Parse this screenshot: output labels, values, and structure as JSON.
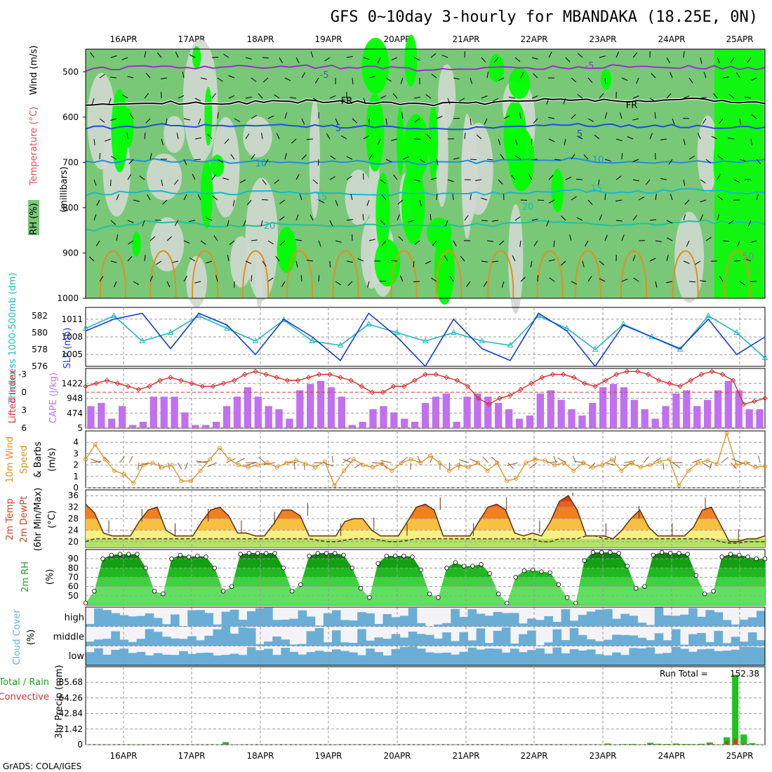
{
  "title": "GFS 0~10day 3-hourly for MBANDAKA (18.25E, 0N)",
  "footer": "GrADS: COLA/IGES",
  "colors": {
    "grid": "#9a9a9a",
    "rh_light": "#d0d8d0",
    "rh_mid": "#78c878",
    "rh_bright": "#00ff00",
    "temp_minus5": "#9b30c8",
    "temp_freeze": "#000000",
    "temp_5": "#2050d0",
    "temp_10": "#1e90d8",
    "temp_15": "#18b8c8",
    "temp_20": "#20c0a0",
    "temp_25": "#e09020",
    "slp": "#1a3ccf",
    "thickness": "#20b8c0",
    "lifted_index": "#d83030",
    "cape": "#c070f0",
    "wind": "#e09020",
    "barb": "#8b5a2b",
    "temp_dark": "#d84018",
    "temp_mid": "#f08020",
    "temp_light": "#f8c040",
    "temp_pale": "#f8f080",
    "dewpt": "#604020",
    "rh_dark": "#108010",
    "rh_green": "#30c030",
    "rh_lime": "#60e060",
    "cloud": "#6aaed6",
    "cloud_bg": "#f4f4f8",
    "precip_total": "#20c020",
    "precip_conv": "#e03030"
  },
  "date_labels": [
    "16APR",
    "17APR",
    "18APR",
    "19APR",
    "20APR",
    "21APR",
    "22APR",
    "23APR",
    "24APR",
    "25APR"
  ],
  "panels": {
    "upper": {
      "ylabel_rh": "RH (%)",
      "ylabel_temp": "Temperature (°C)",
      "ylabel_wind": "Wind (m/s)",
      "ylabel_units": "(millibars)",
      "contour_labels": [
        "-5",
        "-5",
        "FR",
        "FR",
        "5",
        "5",
        "10",
        "10",
        "15",
        "15",
        "20",
        "20",
        "50"
      ]
    },
    "slp": {
      "ylabel_thick": "Thickness 1000-500mb (dm)",
      "ylabel_slp": "SLP (mb)"
    },
    "cape": {
      "ylabel_li": "Lifted Index",
      "ylabel_cape": "CAPE (J/kg)"
    },
    "wind": {
      "ylabel_1": "10m Wind",
      "ylabel_2": "Speed",
      "ylabel_3": "& Barbs",
      "ylabel_4": "(m/s)"
    },
    "temp": {
      "ylabel_1": "2m Temp",
      "ylabel_2": "2m DewPt",
      "ylabel_3": "(6hr Min/Max)",
      "ylabel_4": "(°C)"
    },
    "rh": {
      "ylabel_1": "2m RH",
      "ylabel_2": "(%)"
    },
    "cloud": {
      "ylabel_1": "Cloud Cover",
      "ylabel_2": "(%)",
      "rows": [
        "high",
        "middle",
        "low"
      ]
    },
    "precip": {
      "ylabel_1": "Total / Rain",
      "ylabel_2": "Convective",
      "ylabel_3": "3hr Precip (mm)",
      "run_total_label": "Run Total =",
      "run_total_value": "152.38"
    }
  },
  "chart_data": [
    {
      "type": "heatmap",
      "panel": "upper-air",
      "ylim": [
        1000,
        450
      ],
      "y_ticks": [
        "500",
        "600",
        "700",
        "800",
        "900",
        "1000"
      ],
      "x": [
        "16APR",
        "17APR",
        "18APR",
        "19APR",
        "20APR",
        "21APR",
        "22APR",
        "23APR",
        "24APR",
        "25APR"
      ],
      "isotherm_levels_mb": {
        "-5": [
          495,
          490,
          490,
          488,
          490,
          495,
          492,
          490,
          488,
          490,
          492
        ],
        "FR": [
          570,
          568,
          570,
          565,
          568,
          572,
          568,
          560,
          565,
          562,
          570
        ],
        "5": [
          625,
          618,
          620,
          620,
          622,
          625,
          622,
          615,
          620,
          620,
          625
        ],
        "10": [
          700,
          695,
          698,
          700,
          700,
          702,
          698,
          692,
          700,
          700,
          695
        ],
        "15": [
          770,
          765,
          768,
          765,
          770,
          770,
          768,
          762,
          765,
          760,
          768
        ],
        "20": [
          850,
          830,
          840,
          835,
          840,
          840,
          838,
          830,
          840,
          830,
          835
        ]
      }
    },
    {
      "type": "line",
      "panel": "slp-thickness",
      "series": [
        {
          "name": "SLP (mb)",
          "axis": "right",
          "values": [
            1009,
            1011,
            1012,
            1006,
            1012,
            1010,
            1005,
            1011,
            1008,
            1004,
            1012,
            1008,
            1003,
            1011,
            1006,
            1004,
            1012,
            1009,
            1003,
            1010,
            1008,
            1006,
            1011,
            1005,
            1008
          ]
        },
        {
          "name": "Thickness (dm)",
          "axis": "left",
          "values": [
            580.5,
            582,
            579,
            580,
            582,
            580.5,
            579,
            581.5,
            579,
            578.5,
            581,
            580,
            579,
            580,
            579,
            578.5,
            582,
            580.5,
            578,
            581,
            579.5,
            578,
            582,
            580,
            577
          ]
        }
      ],
      "ylim_slp": [
        1003,
        1013
      ],
      "ylim_thickness": [
        576,
        583
      ],
      "yticks_slp": [
        "1011",
        "1008",
        "1005"
      ],
      "yticks_thickness": [
        "582",
        "580",
        "578",
        "576"
      ]
    },
    {
      "type": "bar",
      "panel": "cape-li",
      "cape_values": [
        700,
        800,
        300,
        700,
        100,
        200,
        1000,
        1000,
        1000,
        500,
        100,
        100,
        200,
        700,
        1000,
        1300,
        1000,
        700,
        600,
        300,
        1200,
        1400,
        1500,
        1300,
        1000,
        100,
        200,
        600,
        700,
        500,
        300,
        200,
        800,
        1000,
        1100,
        200,
        1000,
        1100,
        1000,
        800,
        600,
        300,
        400,
        1100,
        1200,
        900,
        600,
        400,
        800,
        1300,
        1400,
        1300,
        900,
        600,
        300,
        700,
        1100,
        1200,
        700,
        900,
        1200,
        1500,
        1200,
        600,
        600
      ],
      "li_values": [
        -1,
        -1.5,
        -2,
        -1.5,
        -1,
        -0.5,
        -1,
        -2,
        -2.5,
        -2,
        -1.5,
        -1,
        -1,
        -1.5,
        -2,
        -3,
        -3.5,
        -3,
        -2.5,
        -2,
        -2,
        -2.5,
        -3,
        -3,
        -2.5,
        -2,
        -1,
        0,
        0,
        -1,
        -1,
        -2,
        -3,
        -3,
        -2.5,
        -2,
        -1,
        1,
        2,
        1,
        0.5,
        -0.5,
        -1.5,
        -2.5,
        -3,
        -3,
        -2.5,
        -1.5,
        -1,
        -2,
        -3,
        -3.5,
        -3.5,
        -3,
        -2,
        -1.5,
        -1,
        -2,
        -3,
        -3.5,
        -3,
        -2,
        2,
        1.5,
        1
      ],
      "ylim_cape": [
        0,
        1896
      ],
      "yticks_cape": [
        "1422",
        "948",
        "474",
        "5"
      ],
      "ylim_li": [
        6,
        -4
      ],
      "yticks_li": [
        "-3",
        "0",
        "3",
        "6"
      ]
    },
    {
      "type": "line",
      "panel": "wind10m",
      "series": [
        {
          "name": "Speed",
          "values": [
            2.5,
            3.8,
            2.5,
            1.5,
            1.2,
            0.4,
            2,
            2.2,
            1.8,
            2,
            0.6,
            0.6,
            1.5,
            2.5,
            3.5,
            2.5,
            2,
            1.8,
            2,
            2.2,
            1.8,
            2.2,
            2.4,
            2.1,
            1.8,
            2.3,
            0.2,
            1.5,
            2.5,
            2,
            1.8,
            2.1,
            1.5,
            2.2,
            2.5,
            2.2,
            2.8,
            2.2,
            1.5,
            2,
            1.8,
            2.2,
            1.5,
            2.2,
            0.6,
            0.8,
            2.2,
            2.5,
            2.4,
            2,
            2.2,
            1.5,
            2.2,
            1.8,
            2,
            2.5,
            1.5,
            2.2,
            1.8,
            2,
            2.3,
            2.5,
            0.2,
            1.5,
            2.2,
            2.4,
            2.1,
            4.8,
            2,
            2.2,
            1.8,
            1.9
          ]
        }
      ],
      "ylim": [
        0,
        5
      ],
      "yticks": [
        "4",
        "3",
        "2",
        "1",
        "0"
      ]
    },
    {
      "type": "area",
      "panel": "temp2m",
      "series": [
        {
          "name": "2m Temp",
          "values": [
            33,
            30,
            23,
            22,
            22,
            22,
            27,
            31,
            32,
            24,
            22,
            22,
            22,
            27,
            31,
            32,
            29,
            23,
            23,
            22,
            22,
            26,
            31,
            31,
            29,
            22,
            22,
            22,
            22,
            27,
            28,
            28,
            24,
            22,
            22,
            22,
            27,
            32,
            33,
            31,
            22,
            22,
            22,
            22,
            27,
            32,
            33,
            31,
            23,
            22,
            23,
            22,
            27,
            34,
            36,
            31,
            22,
            22,
            22,
            21,
            24,
            28,
            31,
            25,
            22,
            22,
            22,
            22,
            25,
            31,
            32,
            26,
            20,
            20,
            21,
            21,
            22
          ]
        },
        {
          "name": "2m DewPt",
          "values": [
            20,
            21,
            21,
            21,
            21,
            21,
            21,
            21,
            21,
            21,
            21,
            21,
            21,
            21,
            21,
            21,
            21,
            21,
            21,
            21,
            21,
            21,
            21,
            21,
            21,
            21,
            20.5,
            20,
            20,
            20.5,
            21,
            21,
            21,
            20.5,
            20,
            20,
            20.5,
            21,
            21,
            21,
            21,
            21,
            21,
            21,
            21,
            21,
            21,
            21,
            21,
            21,
            21,
            20,
            20,
            21,
            21,
            21,
            22,
            22,
            21,
            21,
            21,
            21,
            21,
            21,
            21,
            21,
            21,
            21,
            21,
            21,
            21,
            20,
            19.5,
            19.5,
            20,
            20,
            20
          ]
        }
      ],
      "ylim": [
        18,
        38
      ],
      "yticks": [
        "36",
        "32",
        "28",
        "24",
        "20"
      ]
    },
    {
      "type": "area",
      "panel": "rh2m",
      "series": [
        {
          "name": "2m RH",
          "values": [
            42,
            55,
            90,
            94,
            95,
            95,
            95,
            80,
            55,
            52,
            90,
            94,
            92,
            93,
            92,
            80,
            55,
            60,
            95,
            96,
            96,
            96,
            96,
            80,
            55,
            62,
            93,
            96,
            96,
            96,
            94,
            80,
            58,
            48,
            85,
            93,
            93,
            93,
            92,
            78,
            52,
            48,
            80,
            86,
            82,
            82,
            84,
            74,
            52,
            42,
            70,
            77,
            78,
            76,
            75,
            62,
            48,
            42,
            88,
            97,
            97,
            97,
            96,
            82,
            58,
            60,
            94,
            97,
            96,
            96,
            95,
            72,
            52,
            55,
            92,
            95,
            94,
            92,
            90,
            90
          ]
        }
      ],
      "ylim": [
        40,
        100
      ],
      "yticks": [
        "90",
        "80",
        "70",
        "60",
        "50"
      ]
    },
    {
      "type": "heatmap",
      "panel": "cloud",
      "rows": [
        "high",
        "middle",
        "low"
      ]
    },
    {
      "type": "bar",
      "panel": "precip",
      "series": [
        {
          "name": "Total / Rain",
          "values": [
            0.2,
            0.1,
            0.3,
            0.1,
            0.2,
            0.5,
            0.2,
            0.3,
            0.2,
            0.1,
            0.1,
            0.2,
            0.3,
            0.2,
            0.1,
            0.2,
            3.5,
            0.5,
            0.3,
            0.2,
            0.1,
            0.3,
            0.2,
            0.1,
            0.2,
            0.3,
            0.2,
            0.1,
            0.2,
            0.4,
            0.2,
            0.1,
            0.1,
            0.2,
            0.1,
            0.2,
            0.3,
            0.2,
            0.1,
            0.2,
            0.2,
            0.1,
            0.2,
            0.3,
            0.2,
            0.1,
            0.1,
            0.1,
            0.2,
            0.3,
            0.2,
            0.2,
            0.1,
            0.2,
            0.1,
            0.3,
            0.2,
            0.2,
            0.1,
            0.2,
            0.5,
            1.5,
            0.3,
            0.8,
            1.0,
            0.5,
            2.5,
            1.2,
            1.0,
            1.5,
            1.0,
            0.8,
            1.2,
            3.0,
            0.5,
            10.0,
            96.0,
            14.0,
            2.0,
            0.5
          ]
        },
        {
          "name": "Convective",
          "values": [
            0.1,
            0.1,
            0.2,
            0.1,
            0.1,
            0.3,
            0.1,
            0.2,
            0.1,
            0.1,
            0.1,
            0.1,
            0.2,
            0.1,
            0.1,
            0.1,
            1.0,
            0.3,
            0.2,
            0.1,
            0.1,
            0.2,
            0.1,
            0.1,
            0.1,
            0.2,
            0.1,
            0.1,
            0.1,
            0.3,
            0.1,
            0.1,
            0.1,
            0.1,
            0.1,
            0.1,
            0.2,
            0.1,
            0.1,
            0.1,
            0.1,
            0.1,
            0.1,
            0.2,
            0.1,
            0.1,
            0.1,
            0.1,
            0.1,
            0.2,
            0.1,
            0.1,
            0.1,
            0.1,
            0.1,
            0.2,
            0.1,
            0.1,
            0.1,
            0.1,
            0.3,
            0.5,
            0.2,
            0.5,
            0.5,
            0.3,
            1.0,
            0.6,
            0.5,
            0.8,
            0.5,
            0.5,
            0.6,
            1.2,
            0.3,
            5.0,
            8.0,
            1.0,
            0.5,
            0.3
          ]
        }
      ],
      "ylim": [
        0,
        107.1
      ],
      "yticks": [
        "85.68",
        "64.26",
        "42.84",
        "21.42",
        "0"
      ]
    }
  ]
}
